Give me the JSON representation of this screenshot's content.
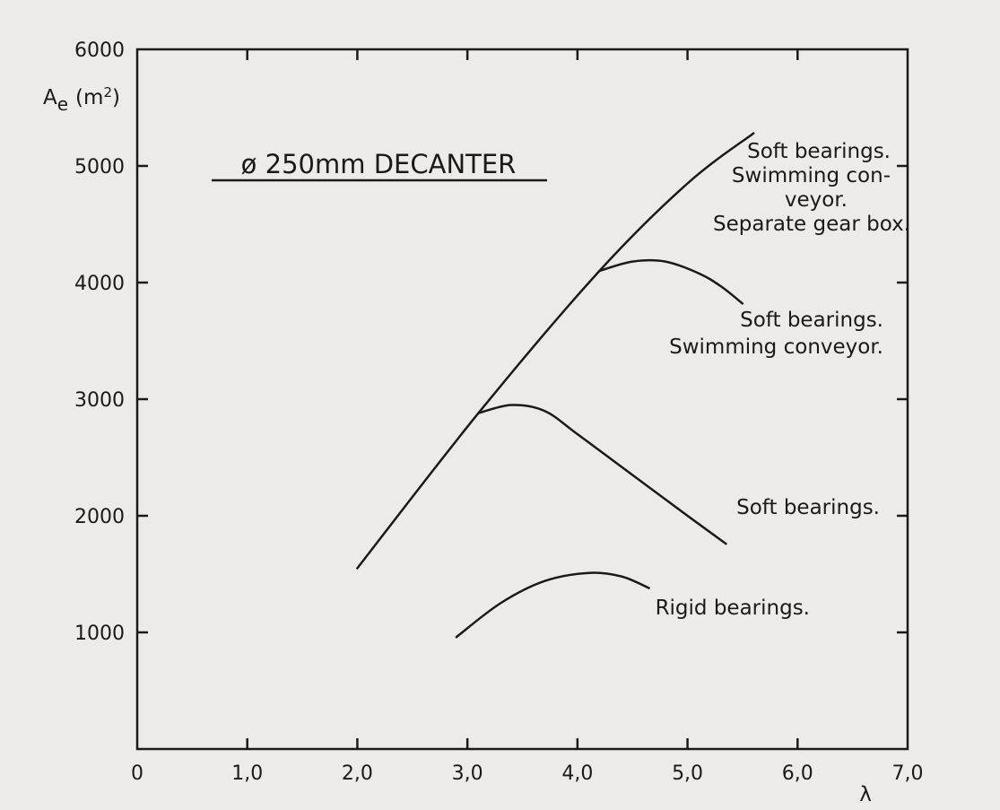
{
  "chart_data": {
    "type": "line",
    "title": "ø 250mm DECANTER",
    "xlabel": "λ",
    "ylabel": "Ae (m²)",
    "ylabel_parts": {
      "main": "A",
      "sub": "e",
      "unit_open": "(m",
      "unit_sup": "2",
      "unit_close": ")"
    },
    "xlim": [
      0,
      7.0
    ],
    "ylim": [
      0,
      6000
    ],
    "x_ticks": [
      0,
      1.0,
      2.0,
      3.0,
      4.0,
      5.0,
      6.0,
      7.0
    ],
    "x_tick_labels": [
      "0",
      "1,0",
      "2,0",
      "3,0",
      "4,0",
      "5,0",
      "6,0",
      "7,0"
    ],
    "y_ticks": [
      1000,
      2000,
      3000,
      4000,
      5000,
      6000
    ],
    "y_tick_labels": [
      "1000",
      "2000",
      "3000",
      "4000",
      "5000",
      "6000"
    ],
    "grid": false,
    "series": [
      {
        "name": "Soft bearings. Swimming con- veyor. Separate gear box.",
        "label_lines": [
          "Soft bearings.",
          "Swimming con-",
          "veyor.",
          "Separate gear box."
        ],
        "points": [
          [
            2.0,
            1550
          ],
          [
            3.1,
            2880
          ],
          [
            4.2,
            4100
          ],
          [
            5.0,
            4850
          ],
          [
            5.6,
            5280
          ]
        ]
      },
      {
        "name": "Soft bearings. Swimming conveyor.",
        "label_lines": [
          "Soft bearings.",
          "Swimming conveyor."
        ],
        "points": [
          [
            4.2,
            4100
          ],
          [
            4.5,
            4180
          ],
          [
            4.8,
            4180
          ],
          [
            5.1,
            4080
          ],
          [
            5.3,
            3970
          ],
          [
            5.5,
            3820
          ]
        ]
      },
      {
        "name": "Soft bearings.",
        "label_lines": [
          "Soft bearings."
        ],
        "points": [
          [
            3.1,
            2880
          ],
          [
            3.4,
            2950
          ],
          [
            3.7,
            2900
          ],
          [
            4.0,
            2700
          ],
          [
            4.5,
            2350
          ],
          [
            5.0,
            2000
          ],
          [
            5.35,
            1760
          ]
        ]
      },
      {
        "name": "Rigid bearings.",
        "label_lines": [
          "Rigid bearings."
        ],
        "points": [
          [
            2.9,
            960
          ],
          [
            3.3,
            1250
          ],
          [
            3.7,
            1440
          ],
          [
            4.1,
            1510
          ],
          [
            4.4,
            1480
          ],
          [
            4.65,
            1380
          ]
        ]
      }
    ]
  }
}
